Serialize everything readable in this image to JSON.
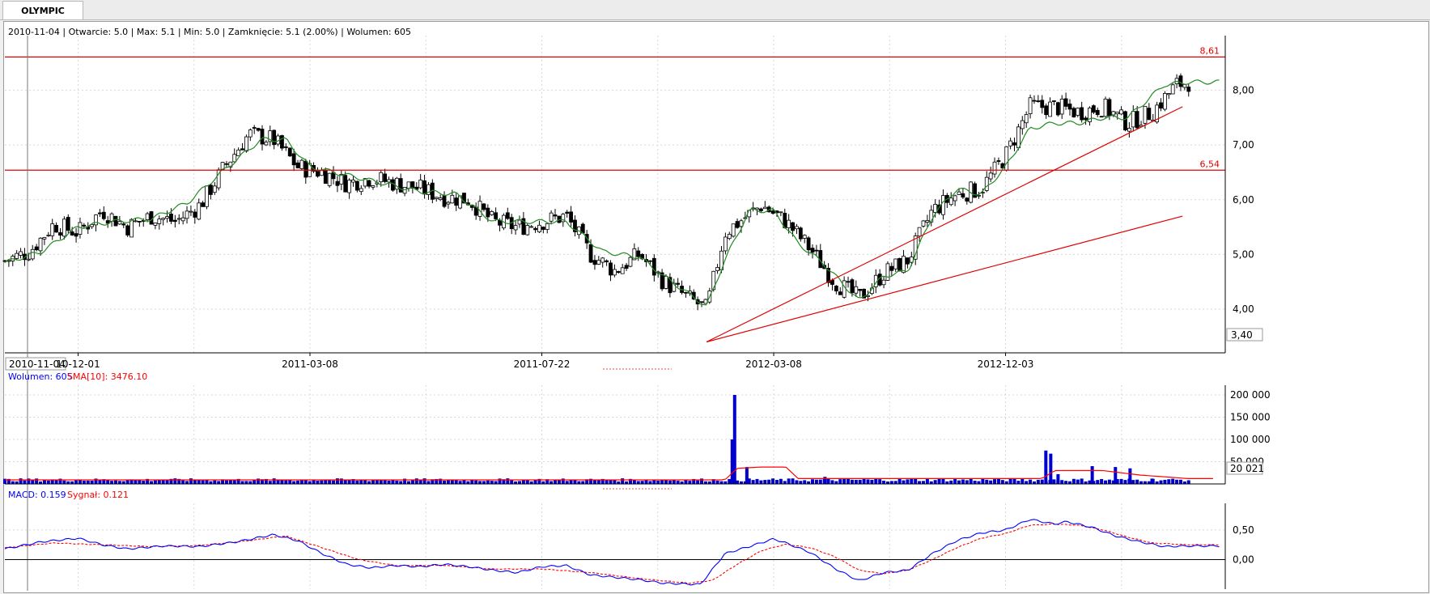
{
  "tab": {
    "label": "OLYMPIC"
  },
  "info_line": "2010-11-04 | Otwarcie: 5.0 | Max: 5.1 | Min: 5.0 | Zamknięcie: 5.1 (2.00%)  | Wolumen: 605",
  "legends": {
    "volume_label": "Wolumen: 605",
    "volume_sma_label": "SMA[10]: 3476.10",
    "macd_label": "MACD: 0.159",
    "signal_label": "Sygnał: 0.121"
  },
  "colors": {
    "up_candle": "#ffffff",
    "down_candle": "#000000",
    "sma_price": "#228b22",
    "levels": "#e00000",
    "volume_bars": "#0000cc",
    "volume_sma": "#ff0000",
    "macd": "#0000ff",
    "signal": "#ff0000"
  },
  "chart_data": [
    {
      "type": "candlestick",
      "title": "OLYMPIC",
      "x_ticks": [
        "10-12-01",
        "2011-03-08",
        "2011-07-22",
        "2012-03-08",
        "2012-12-03"
      ],
      "crosshair_date": "2010-11-04",
      "y_ticks": [
        "4,00",
        "5,00",
        "6,00",
        "7,00",
        "8,00"
      ],
      "ylim": [
        3.2,
        9.0
      ],
      "min_label": "3,40",
      "horizontal_levels": [
        {
          "value": 8.61,
          "label": "8,61"
        },
        {
          "value": 6.54,
          "label": "6,54"
        }
      ],
      "trendlines": [
        {
          "from": [
            0.575,
            3.4
          ],
          "to": [
            0.965,
            7.7
          ]
        },
        {
          "from": [
            0.575,
            3.4
          ],
          "to": [
            0.965,
            5.7
          ]
        }
      ],
      "close_anchors": [
        [
          0.0,
          4.88
        ],
        [
          0.02,
          5.05
        ],
        [
          0.04,
          5.55
        ],
        [
          0.06,
          5.4
        ],
        [
          0.08,
          5.8
        ],
        [
          0.1,
          5.5
        ],
        [
          0.12,
          5.7
        ],
        [
          0.14,
          5.6
        ],
        [
          0.16,
          5.9
        ],
        [
          0.18,
          6.6
        ],
        [
          0.2,
          7.2
        ],
        [
          0.22,
          7.1
        ],
        [
          0.24,
          6.6
        ],
        [
          0.26,
          6.5
        ],
        [
          0.28,
          6.3
        ],
        [
          0.3,
          6.4
        ],
        [
          0.32,
          6.3
        ],
        [
          0.34,
          6.2
        ],
        [
          0.36,
          6.05
        ],
        [
          0.38,
          6.0
        ],
        [
          0.4,
          5.6
        ],
        [
          0.42,
          5.5
        ],
        [
          0.44,
          5.6
        ],
        [
          0.46,
          5.7
        ],
        [
          0.48,
          5.0
        ],
        [
          0.5,
          4.7
        ],
        [
          0.52,
          5.0
        ],
        [
          0.54,
          4.5
        ],
        [
          0.56,
          4.2
        ],
        [
          0.575,
          4.0
        ],
        [
          0.59,
          5.4
        ],
        [
          0.62,
          5.9
        ],
        [
          0.64,
          5.6
        ],
        [
          0.66,
          5.1
        ],
        [
          0.68,
          4.5
        ],
        [
          0.7,
          4.2
        ],
        [
          0.72,
          4.65
        ],
        [
          0.74,
          4.9
        ],
        [
          0.76,
          5.8
        ],
        [
          0.78,
          6.1
        ],
        [
          0.8,
          6.2
        ],
        [
          0.82,
          6.8
        ],
        [
          0.84,
          7.7
        ],
        [
          0.86,
          7.7
        ],
        [
          0.88,
          7.6
        ],
        [
          0.9,
          7.7
        ],
        [
          0.92,
          7.4
        ],
        [
          0.94,
          7.6
        ],
        [
          0.96,
          8.1
        ],
        [
          0.97,
          8.15
        ]
      ],
      "sma_anchors": [
        [
          0.0,
          4.85
        ],
        [
          0.03,
          5.05
        ],
        [
          0.06,
          5.5
        ],
        [
          0.09,
          5.6
        ],
        [
          0.12,
          5.65
        ],
        [
          0.15,
          5.95
        ],
        [
          0.18,
          6.55
        ],
        [
          0.21,
          7.1
        ],
        [
          0.23,
          7.1
        ],
        [
          0.25,
          6.6
        ],
        [
          0.28,
          6.45
        ],
        [
          0.31,
          6.3
        ],
        [
          0.34,
          6.15
        ],
        [
          0.37,
          6.1
        ],
        [
          0.4,
          5.6
        ],
        [
          0.43,
          5.6
        ],
        [
          0.46,
          5.6
        ],
        [
          0.49,
          5.05
        ],
        [
          0.52,
          4.95
        ],
        [
          0.54,
          4.6
        ],
        [
          0.575,
          4.05
        ],
        [
          0.59,
          4.9
        ],
        [
          0.61,
          5.8
        ],
        [
          0.63,
          5.8
        ],
        [
          0.65,
          5.2
        ],
        [
          0.67,
          4.85
        ],
        [
          0.7,
          4.15
        ],
        [
          0.72,
          4.6
        ],
        [
          0.74,
          4.7
        ],
        [
          0.76,
          5.7
        ],
        [
          0.78,
          6.2
        ],
        [
          0.8,
          6.1
        ],
        [
          0.82,
          6.6
        ],
        [
          0.84,
          7.3
        ],
        [
          0.86,
          7.4
        ],
        [
          0.88,
          7.4
        ],
        [
          0.9,
          7.5
        ],
        [
          0.92,
          7.5
        ],
        [
          0.95,
          8.1
        ],
        [
          0.97,
          8.15
        ]
      ]
    },
    {
      "type": "bar",
      "title": "Wolumen",
      "y_ticks": [
        "50 000",
        "100 000",
        "150 000",
        "200 000"
      ],
      "ylim": [
        0,
        200000
      ],
      "last_value_label": "20 021",
      "baseline": 9000,
      "spikes": [
        {
          "x": 0.596,
          "value": 100000
        },
        {
          "x": 0.598,
          "value": 200000
        },
        {
          "x": 0.608,
          "value": 38000
        },
        {
          "x": 0.672,
          "value": 16000
        },
        {
          "x": 0.853,
          "value": 75000
        },
        {
          "x": 0.857,
          "value": 68000
        },
        {
          "x": 0.863,
          "value": 22000
        },
        {
          "x": 0.891,
          "value": 40000
        },
        {
          "x": 0.91,
          "value": 38000
        },
        {
          "x": 0.922,
          "value": 35000
        },
        {
          "x": 0.94,
          "value": 12000
        }
      ],
      "sma_anchors": [
        [
          0.0,
          9000
        ],
        [
          0.59,
          9000
        ],
        [
          0.6,
          35000
        ],
        [
          0.62,
          38000
        ],
        [
          0.64,
          38000
        ],
        [
          0.65,
          12000
        ],
        [
          0.85,
          12000
        ],
        [
          0.86,
          30000
        ],
        [
          0.9,
          30000
        ],
        [
          0.93,
          20000
        ],
        [
          0.97,
          12000
        ]
      ]
    },
    {
      "type": "line",
      "title": "MACD",
      "y_ticks": [
        "0,00",
        "0,50"
      ],
      "ylim": [
        -0.5,
        0.95
      ],
      "macd_anchors": [
        [
          0.0,
          0.18
        ],
        [
          0.03,
          0.3
        ],
        [
          0.06,
          0.36
        ],
        [
          0.08,
          0.25
        ],
        [
          0.1,
          0.18
        ],
        [
          0.13,
          0.23
        ],
        [
          0.16,
          0.22
        ],
        [
          0.19,
          0.3
        ],
        [
          0.22,
          0.42
        ],
        [
          0.24,
          0.32
        ],
        [
          0.26,
          0.1
        ],
        [
          0.28,
          -0.08
        ],
        [
          0.3,
          -0.14
        ],
        [
          0.32,
          -0.1
        ],
        [
          0.34,
          -0.12
        ],
        [
          0.36,
          -0.08
        ],
        [
          0.38,
          -0.12
        ],
        [
          0.4,
          -0.18
        ],
        [
          0.42,
          -0.22
        ],
        [
          0.44,
          -0.12
        ],
        [
          0.46,
          -0.1
        ],
        [
          0.48,
          -0.26
        ],
        [
          0.5,
          -0.3
        ],
        [
          0.52,
          -0.34
        ],
        [
          0.54,
          -0.4
        ],
        [
          0.57,
          -0.42
        ],
        [
          0.59,
          0.1
        ],
        [
          0.61,
          0.22
        ],
        [
          0.63,
          0.35
        ],
        [
          0.64,
          0.28
        ],
        [
          0.66,
          0.12
        ],
        [
          0.68,
          -0.15
        ],
        [
          0.7,
          -0.36
        ],
        [
          0.72,
          -0.22
        ],
        [
          0.74,
          -0.18
        ],
        [
          0.76,
          0.1
        ],
        [
          0.78,
          0.32
        ],
        [
          0.8,
          0.45
        ],
        [
          0.82,
          0.5
        ],
        [
          0.84,
          0.68
        ],
        [
          0.86,
          0.6
        ],
        [
          0.87,
          0.64
        ],
        [
          0.89,
          0.55
        ],
        [
          0.91,
          0.4
        ],
        [
          0.93,
          0.3
        ],
        [
          0.95,
          0.22
        ],
        [
          0.97,
          0.23
        ]
      ],
      "signal_anchors": [
        [
          0.0,
          0.2
        ],
        [
          0.04,
          0.28
        ],
        [
          0.08,
          0.25
        ],
        [
          0.12,
          0.22
        ],
        [
          0.16,
          0.24
        ],
        [
          0.2,
          0.32
        ],
        [
          0.23,
          0.4
        ],
        [
          0.26,
          0.2
        ],
        [
          0.29,
          0.0
        ],
        [
          0.32,
          -0.1
        ],
        [
          0.36,
          -0.1
        ],
        [
          0.4,
          -0.16
        ],
        [
          0.44,
          -0.16
        ],
        [
          0.48,
          -0.22
        ],
        [
          0.52,
          -0.32
        ],
        [
          0.56,
          -0.4
        ],
        [
          0.58,
          -0.35
        ],
        [
          0.6,
          -0.08
        ],
        [
          0.62,
          0.15
        ],
        [
          0.64,
          0.26
        ],
        [
          0.66,
          0.2
        ],
        [
          0.68,
          0.05
        ],
        [
          0.7,
          -0.18
        ],
        [
          0.72,
          -0.24
        ],
        [
          0.74,
          -0.18
        ],
        [
          0.76,
          0.0
        ],
        [
          0.78,
          0.2
        ],
        [
          0.8,
          0.36
        ],
        [
          0.82,
          0.44
        ],
        [
          0.84,
          0.58
        ],
        [
          0.86,
          0.6
        ],
        [
          0.88,
          0.58
        ],
        [
          0.9,
          0.5
        ],
        [
          0.92,
          0.38
        ],
        [
          0.94,
          0.28
        ],
        [
          0.97,
          0.25
        ]
      ]
    }
  ]
}
